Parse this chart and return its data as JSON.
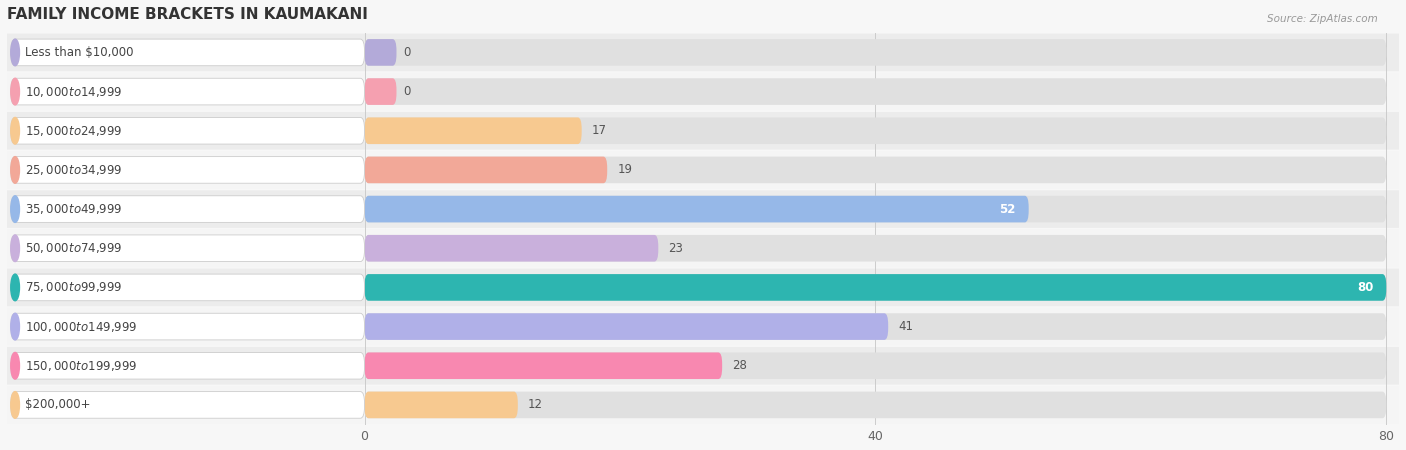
{
  "title": "FAMILY INCOME BRACKETS IN KAUMAKANI",
  "source": "Source: ZipAtlas.com",
  "categories": [
    "Less than $10,000",
    "$10,000 to $14,999",
    "$15,000 to $24,999",
    "$25,000 to $34,999",
    "$35,000 to $49,999",
    "$50,000 to $74,999",
    "$75,000 to $99,999",
    "$100,000 to $149,999",
    "$150,000 to $199,999",
    "$200,000+"
  ],
  "values": [
    0,
    0,
    17,
    19,
    52,
    23,
    80,
    41,
    28,
    12
  ],
  "bar_colors": [
    "#b3aad9",
    "#f5a0b0",
    "#f7c990",
    "#f2a898",
    "#96b8e8",
    "#c9b0dc",
    "#2db5b0",
    "#b0b0e8",
    "#f888b0",
    "#f7c990"
  ],
  "label_pill_colors": [
    "#b3aad9",
    "#f5a0b0",
    "#f7c990",
    "#f2a898",
    "#96b8e8",
    "#c9b0dc",
    "#2db5b0",
    "#b0b0e8",
    "#f888b0",
    "#f7c990"
  ],
  "value_inside": [
    false,
    false,
    false,
    false,
    true,
    false,
    true,
    false,
    false,
    false
  ],
  "xlim_max": 80,
  "xticks": [
    0,
    40,
    80
  ],
  "bg_color": "#f7f7f7",
  "row_bg_color": "#efefef",
  "row_alt_color": "#f7f7f7",
  "title_fontsize": 11,
  "label_fontsize": 8.5,
  "value_fontsize": 8.5
}
